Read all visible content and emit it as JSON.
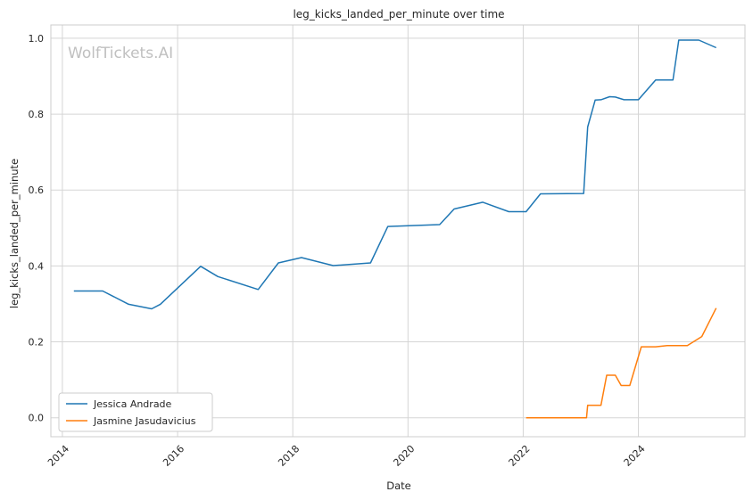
{
  "chart_data": {
    "type": "line",
    "title": "leg_kicks_landed_per_minute over time",
    "xlabel": "Date",
    "ylabel": "leg_kicks_landed_per_minute",
    "watermark": "WolfTickets.AI",
    "xlim": [
      2013.8,
      2025.85
    ],
    "ylim": [
      -0.05,
      1.035
    ],
    "x_ticks": [
      2014,
      2016,
      2018,
      2020,
      2022,
      2024
    ],
    "x_tick_labels": [
      "2014",
      "2016",
      "2018",
      "2020",
      "2022",
      "2024"
    ],
    "y_ticks": [
      0.0,
      0.2,
      0.4,
      0.6,
      0.8,
      1.0
    ],
    "y_tick_labels": [
      "0.0",
      "0.2",
      "0.4",
      "0.6",
      "0.8",
      "1.0"
    ],
    "grid": true,
    "legend_position": "lower-left",
    "series": [
      {
        "name": "Jessica Andrade",
        "color": "#1f77b4",
        "x": [
          2014.2,
          2014.7,
          2015.15,
          2015.55,
          2015.7,
          2016.4,
          2016.7,
          2017.4,
          2017.75,
          2018.15,
          2018.7,
          2019.35,
          2019.65,
          2020.55,
          2020.8,
          2021.3,
          2021.75,
          2022.05,
          2022.3,
          2023.05,
          2023.12,
          2023.25,
          2023.35,
          2023.5,
          2023.6,
          2023.75,
          2024.0,
          2024.3,
          2024.6,
          2024.7,
          2025.05,
          2025.35
        ],
        "y": [
          0.334,
          0.334,
          0.299,
          0.287,
          0.299,
          0.399,
          0.372,
          0.338,
          0.408,
          0.422,
          0.401,
          0.408,
          0.504,
          0.509,
          0.55,
          0.568,
          0.543,
          0.543,
          0.59,
          0.591,
          0.766,
          0.837,
          0.838,
          0.846,
          0.845,
          0.838,
          0.838,
          0.89,
          0.89,
          0.995,
          0.995,
          0.975
        ]
      },
      {
        "name": "Jasmine Jasudavicius",
        "color": "#ff7f0e",
        "x": [
          2022.05,
          2023.1,
          2023.12,
          2023.35,
          2023.45,
          2023.6,
          2023.7,
          2023.85,
          2024.05,
          2024.3,
          2024.5,
          2024.85,
          2025.1,
          2025.35
        ],
        "y": [
          0.0,
          0.0,
          0.033,
          0.033,
          0.112,
          0.112,
          0.085,
          0.085,
          0.187,
          0.187,
          0.19,
          0.19,
          0.214,
          0.289
        ]
      }
    ]
  }
}
